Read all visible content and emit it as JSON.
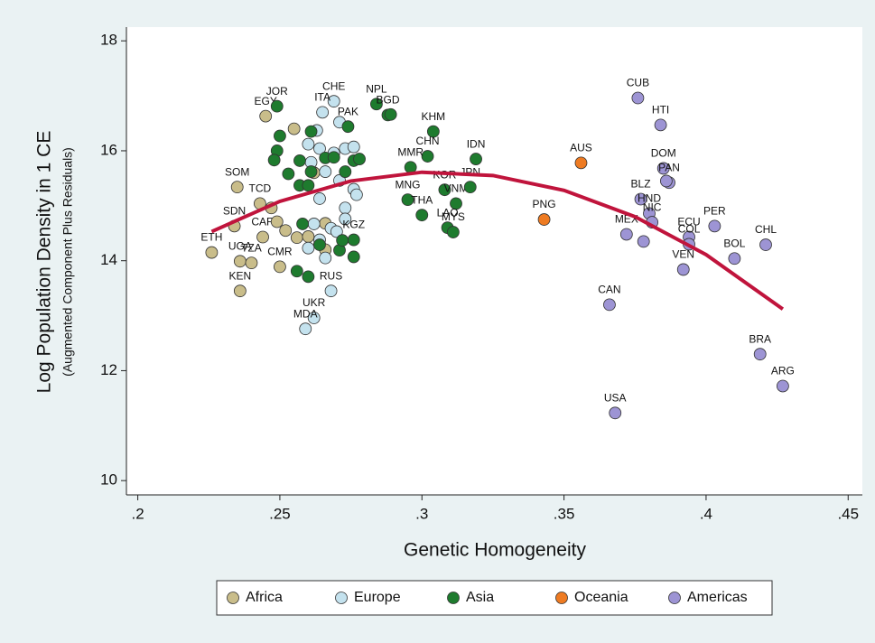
{
  "chart_data": {
    "type": "scatter",
    "x_label": "Genetic Homogeneity",
    "y_label": "Log Population Density in 1 CE",
    "y_sublabel": "(Augmented Component Plus Residuals)",
    "xlim": [
      0.196,
      0.455
    ],
    "ylim": [
      9.74,
      18.25
    ],
    "xticks": [
      {
        "value": 0.2,
        "label": ".2"
      },
      {
        "value": 0.25,
        "label": ".25"
      },
      {
        "value": 0.3,
        "label": ".3"
      },
      {
        "value": 0.35,
        "label": ".35"
      },
      {
        "value": 0.4,
        "label": ".4"
      },
      {
        "value": 0.45,
        "label": ".45"
      }
    ],
    "yticks": [
      10,
      12,
      14,
      16,
      18
    ],
    "grid": false,
    "legend": "bottom",
    "series": [
      {
        "name": "Africa",
        "color": "#c9bd8a",
        "x": [
          0.226,
          0.236,
          0.24,
          0.236,
          0.235,
          0.234,
          0.243,
          0.244,
          0.25,
          0.245,
          0.249,
          0.252,
          0.256,
          0.26,
          0.264,
          0.266,
          0.266,
          0.247,
          0.255,
          0.262
        ],
        "values": [
          14.15,
          13.99,
          13.96,
          13.45,
          15.34,
          14.63,
          15.04,
          14.43,
          13.89,
          16.63,
          14.71,
          14.55,
          14.42,
          14.44,
          14.3,
          14.2,
          14.68,
          14.96,
          16.4,
          15.6
        ],
        "labels": [
          "ETH",
          "UGA",
          "TZA",
          "KEN",
          "SOM",
          "SDN",
          "TCD",
          "CAR",
          "CMR",
          "EGY",
          null,
          null,
          null,
          null,
          null,
          null,
          null,
          null,
          null,
          null
        ]
      },
      {
        "name": "Europe",
        "color": "#c4e2ee",
        "x": [
          0.269,
          0.265,
          0.262,
          0.259,
          0.268,
          0.271,
          0.263,
          0.26,
          0.264,
          0.269,
          0.273,
          0.276,
          0.261,
          0.266,
          0.271,
          0.276,
          0.264,
          0.273,
          0.277,
          0.273,
          0.262,
          0.268,
          0.27,
          0.264,
          0.266,
          0.26
        ],
        "values": [
          16.9,
          16.7,
          12.96,
          12.76,
          13.45,
          16.52,
          16.37,
          16.12,
          16.04,
          15.96,
          16.04,
          16.07,
          15.79,
          15.62,
          15.46,
          15.3,
          15.13,
          14.96,
          15.2,
          14.76,
          14.67,
          14.59,
          14.53,
          14.38,
          14.05,
          14.23
        ],
        "labels": [
          "CHE",
          "ITA",
          "UKR",
          "MDA",
          "RUS",
          null,
          null,
          null,
          null,
          null,
          null,
          null,
          null,
          null,
          null,
          null,
          null,
          null,
          null,
          null,
          null,
          null,
          null,
          null,
          null,
          null
        ]
      },
      {
        "name": "Asia",
        "color": "#1e7b2e",
        "x": [
          0.284,
          0.288,
          0.304,
          0.302,
          0.296,
          0.319,
          0.308,
          0.312,
          0.317,
          0.295,
          0.3,
          0.309,
          0.311,
          0.274,
          0.249,
          0.276,
          0.289,
          0.25,
          0.249,
          0.248,
          0.253,
          0.257,
          0.26,
          0.261,
          0.257,
          0.266,
          0.269,
          0.273,
          0.276,
          0.278,
          0.261,
          0.256,
          0.26,
          0.271,
          0.272,
          0.264,
          0.258,
          0.276
        ],
        "values": [
          16.85,
          16.65,
          16.35,
          15.9,
          15.7,
          15.85,
          15.29,
          15.04,
          15.34,
          15.11,
          14.83,
          14.6,
          14.52,
          16.44,
          16.81,
          14.38,
          16.66,
          16.27,
          16.0,
          15.83,
          15.58,
          15.37,
          15.37,
          15.62,
          15.82,
          15.87,
          15.88,
          15.62,
          15.82,
          15.85,
          16.35,
          13.81,
          13.71,
          14.19,
          14.37,
          14.29,
          14.67,
          14.07
        ],
        "labels": [
          "NPL",
          "BGD",
          "KHM",
          "CHN",
          "MMR",
          "IDN",
          "KOR",
          "VNM",
          "JPN",
          "MNG",
          "THA",
          "LAO",
          "MYS",
          "PAK",
          "JOR",
          "KGZ",
          null,
          null,
          null,
          null,
          null,
          null,
          null,
          null,
          null,
          null,
          null,
          null,
          null,
          null,
          null,
          null,
          null,
          null,
          null,
          null,
          null,
          null
        ]
      },
      {
        "name": "Oceania",
        "color": "#ee7b22",
        "x": [
          0.356,
          0.343
        ],
        "values": [
          15.78,
          14.75
        ],
        "labels": [
          "AUS",
          "PNG"
        ]
      },
      {
        "name": "Americas",
        "color": "#9d94d4",
        "x": [
          0.376,
          0.384,
          0.385,
          0.387,
          0.377,
          0.38,
          0.381,
          0.372,
          0.394,
          0.394,
          0.392,
          0.403,
          0.41,
          0.421,
          0.366,
          0.368,
          0.419,
          0.427,
          0.386,
          0.378
        ],
        "values": [
          16.96,
          16.47,
          15.68,
          15.42,
          15.12,
          14.86,
          14.7,
          14.48,
          14.43,
          14.3,
          13.84,
          14.63,
          14.04,
          14.29,
          13.2,
          11.23,
          12.3,
          11.72,
          15.45,
          14.35
        ],
        "labels": [
          "CUB",
          "HTI",
          "DOM",
          "PAN",
          "BLZ",
          "HND",
          "NIC",
          "MEX",
          "ECU",
          "COL",
          "VEN",
          "PER",
          "BOL",
          "CHL",
          "CAN",
          "USA",
          "BRA",
          "ARG",
          null,
          null
        ]
      }
    ],
    "fit": {
      "color": "#c0143c",
      "x": [
        0.226,
        0.25,
        0.275,
        0.3,
        0.325,
        0.35,
        0.375,
        0.4,
        0.427
      ],
      "values": [
        14.53,
        15.08,
        15.45,
        15.61,
        15.55,
        15.28,
        14.8,
        14.11,
        13.12
      ]
    }
  }
}
